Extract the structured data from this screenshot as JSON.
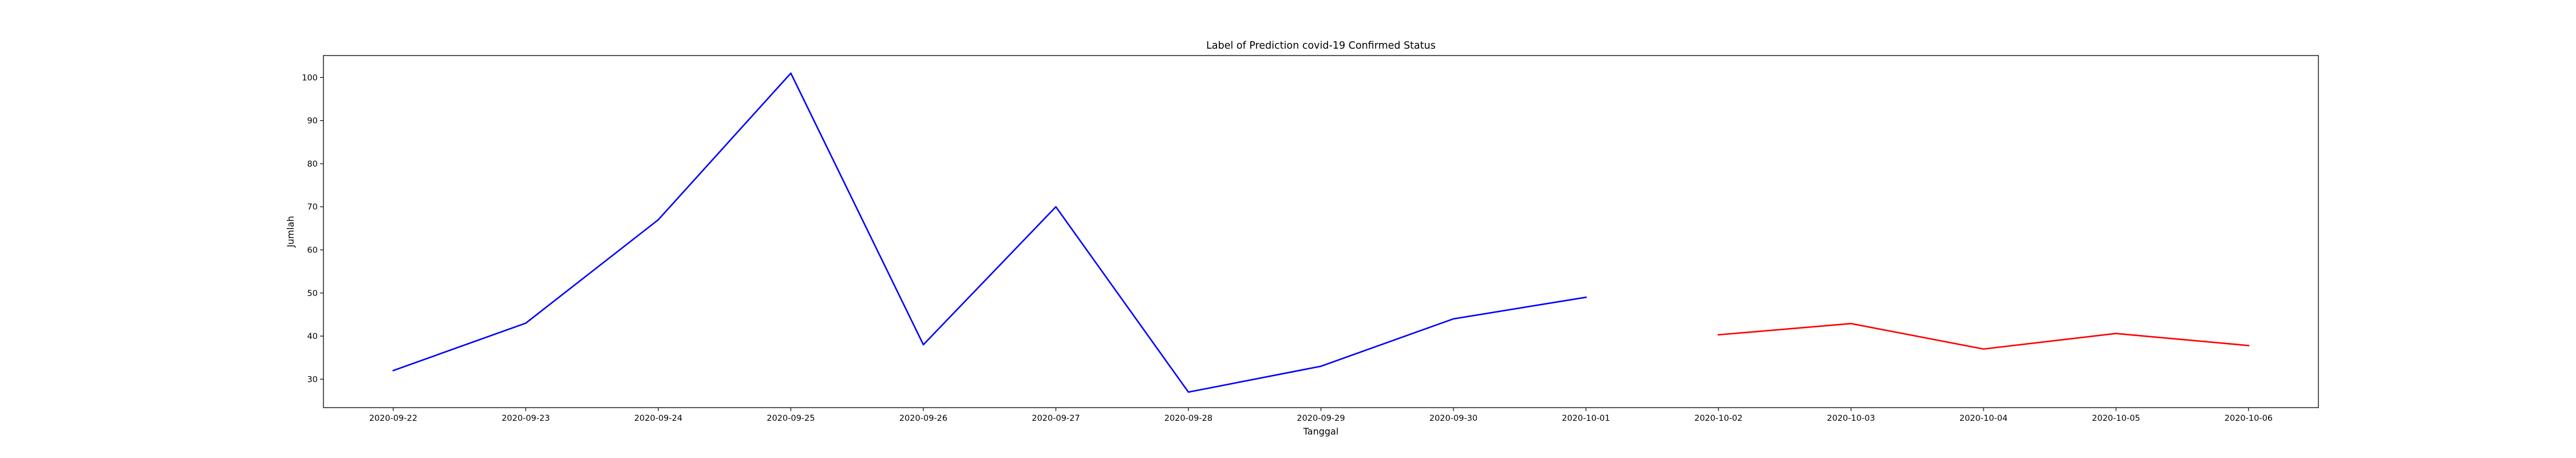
{
  "chart_data": {
    "type": "line",
    "title": "Label of Prediction covid-19 Confirmed Status",
    "xlabel": "Tanggal",
    "ylabel": "Jumlah",
    "categories": [
      "2020-09-22",
      "2020-09-23",
      "2020-09-24",
      "2020-09-25",
      "2020-09-26",
      "2020-09-27",
      "2020-09-28",
      "2020-09-29",
      "2020-09-30",
      "2020-10-01",
      "2020-10-02",
      "2020-10-03",
      "2020-10-04",
      "2020-10-05",
      "2020-10-06"
    ],
    "yticks": [
      30,
      40,
      50,
      60,
      70,
      80,
      90,
      100
    ],
    "ylim": [
      23.4,
      105.1
    ],
    "grid": false,
    "series": [
      {
        "color": "#0000ff",
        "points": [
          {
            "x": "2020-09-22",
            "y": 32
          },
          {
            "x": "2020-09-23",
            "y": 43
          },
          {
            "x": "2020-09-24",
            "y": 67
          },
          {
            "x": "2020-09-25",
            "y": 101
          },
          {
            "x": "2020-09-26",
            "y": 38
          },
          {
            "x": "2020-09-27",
            "y": 70
          },
          {
            "x": "2020-09-28",
            "y": 27
          },
          {
            "x": "2020-09-29",
            "y": 33
          },
          {
            "x": "2020-09-30",
            "y": 44
          },
          {
            "x": "2020-10-01",
            "y": 49
          }
        ]
      },
      {
        "color": "#ff0000",
        "points": [
          {
            "x": "2020-10-02",
            "y": 40.3
          },
          {
            "x": "2020-10-03",
            "y": 42.9
          },
          {
            "x": "2020-10-04",
            "y": 37.0
          },
          {
            "x": "2020-10-05",
            "y": 40.6
          },
          {
            "x": "2020-10-06",
            "y": 37.8
          }
        ]
      }
    ]
  }
}
